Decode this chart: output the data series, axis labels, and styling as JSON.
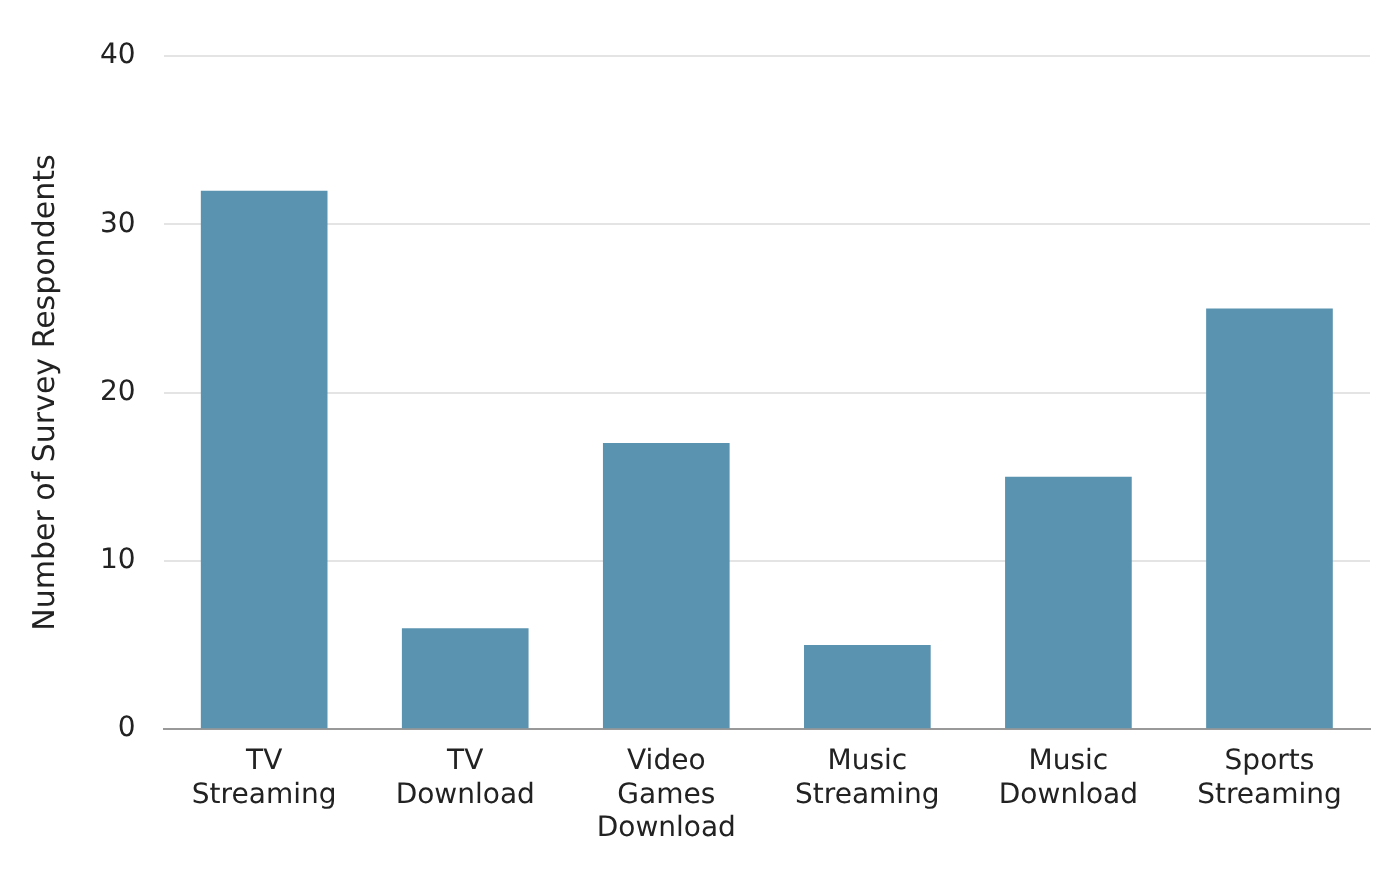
{
  "chart_data": {
    "type": "bar",
    "ylabel": "Number of Survey Respondents",
    "categories": [
      "TV Streaming",
      "TV Download",
      "Video Games Download",
      "Music Streaming",
      "Music Download",
      "Sports Streaming"
    ],
    "values": [
      32,
      6,
      17,
      5,
      15,
      25
    ],
    "color": "#5a93b0",
    "ylim": [
      0,
      40
    ],
    "yticks": [
      0,
      10,
      20,
      30,
      40
    ],
    "grid": "y"
  }
}
